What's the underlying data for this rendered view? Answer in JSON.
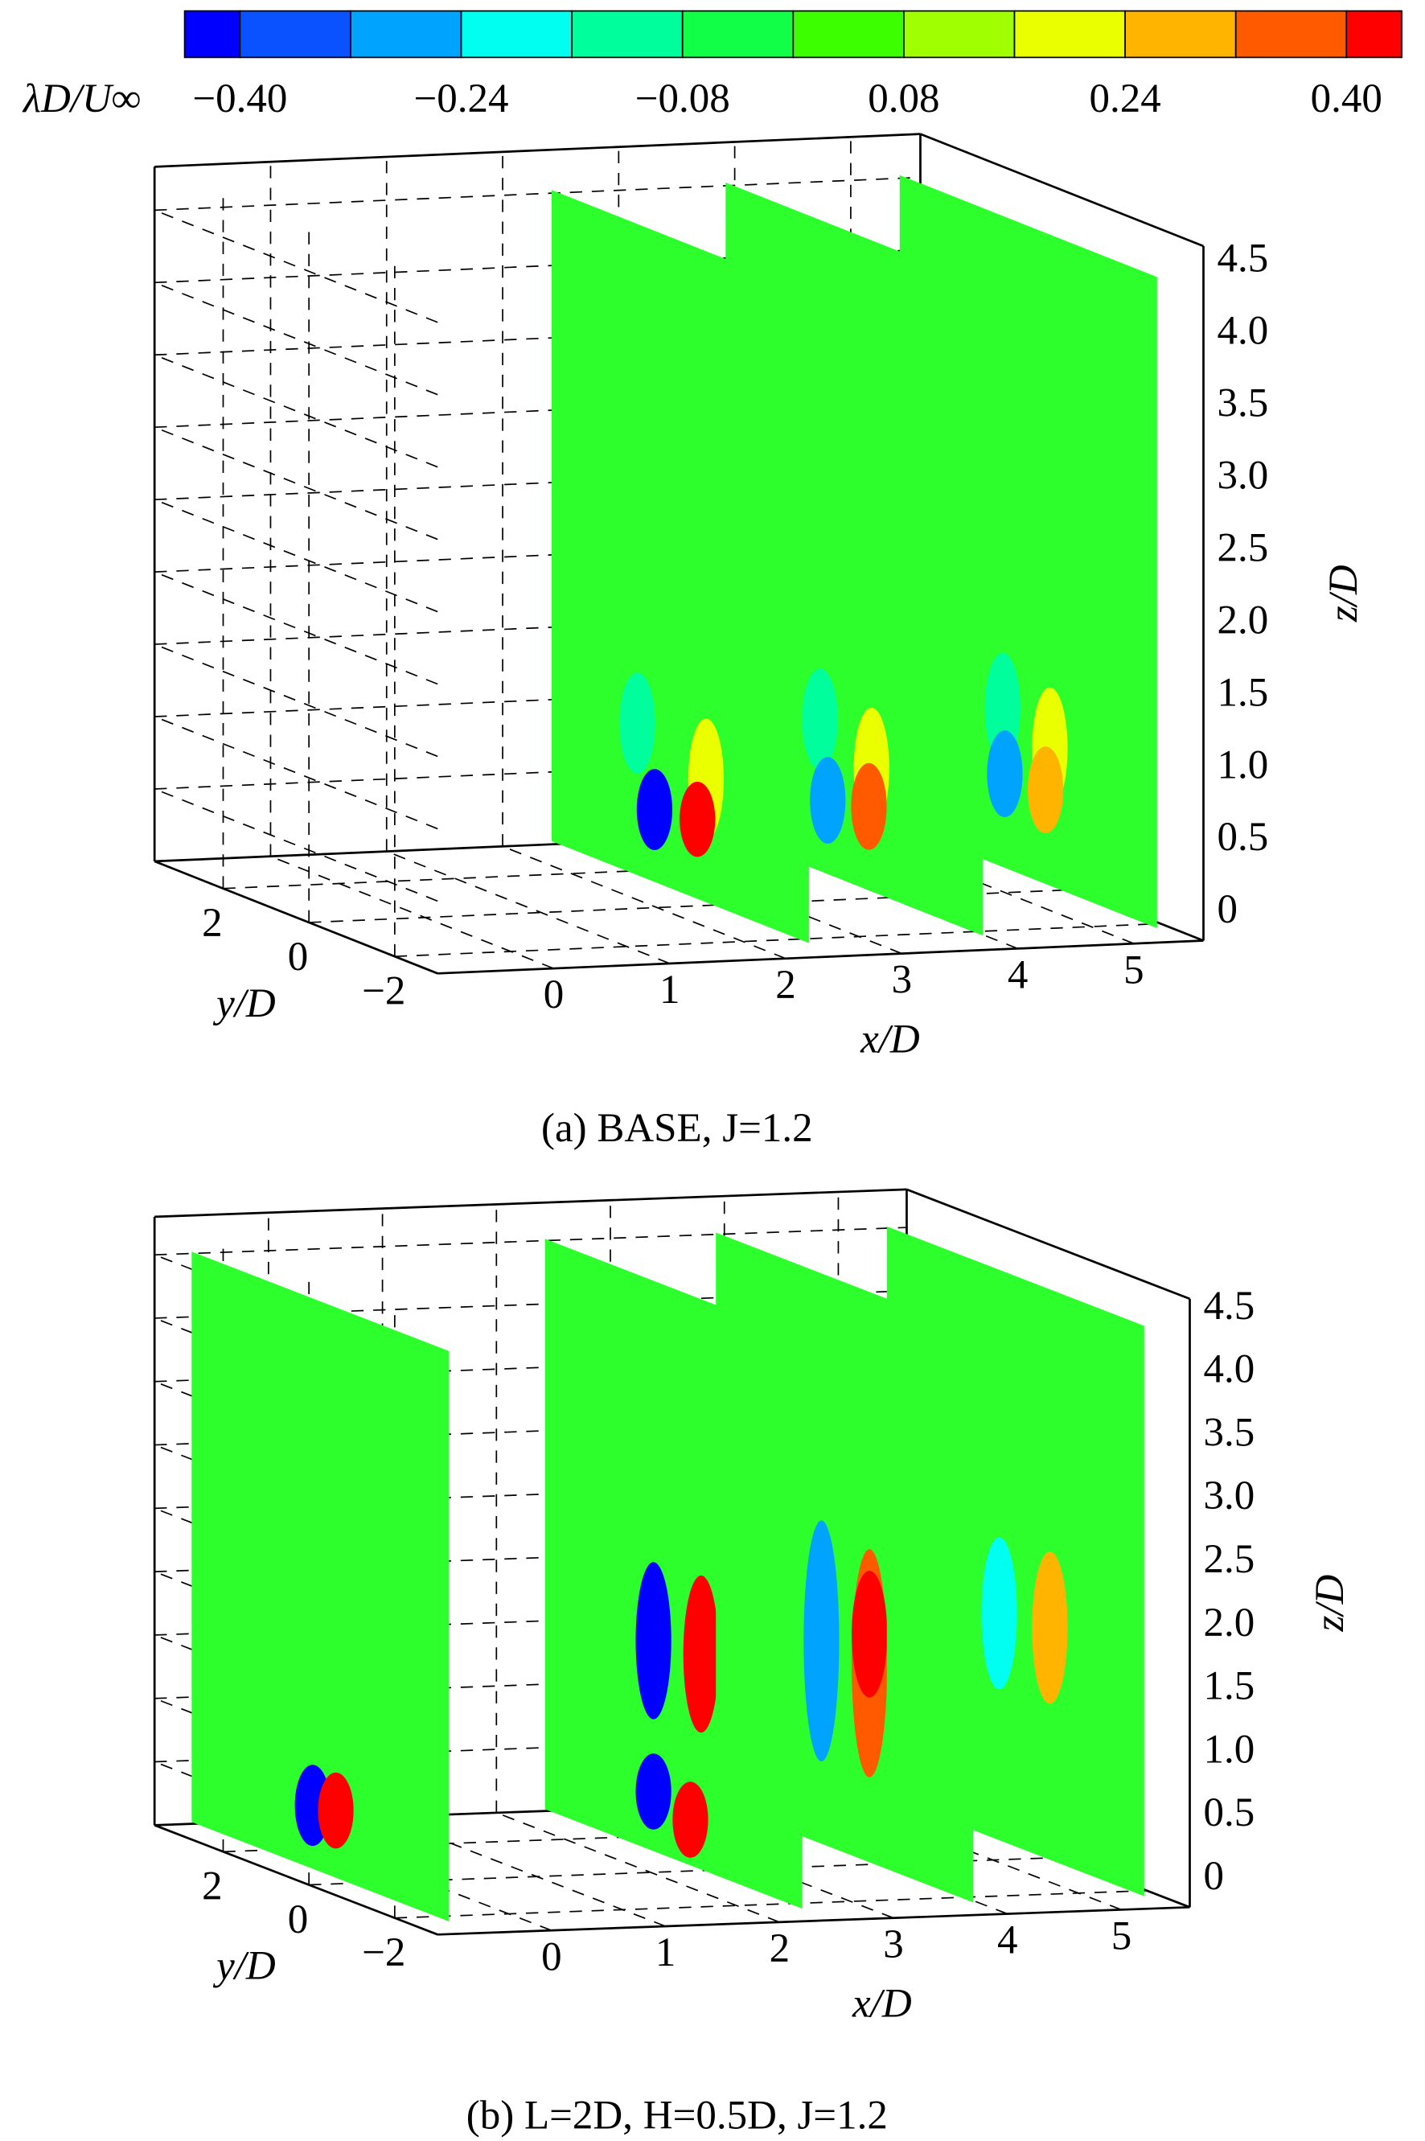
{
  "colorbar": {
    "label": "λD/U∞",
    "levels": [
      -0.44,
      -0.4,
      -0.32,
      -0.24,
      -0.16,
      -0.08,
      0,
      0.08,
      0.16,
      0.24,
      0.32,
      0.4,
      0.44
    ],
    "colors": [
      "#0000ff",
      "#0a52ff",
      "#00a4ff",
      "#00fff0",
      "#00ff9c",
      "#12ff48",
      "#3cff00",
      "#a0ff00",
      "#eaff00",
      "#ffb400",
      "#ff5a00",
      "#ff0000"
    ],
    "ticks": [
      {
        "value": -0.4,
        "label": "−0.40"
      },
      {
        "value": -0.24,
        "label": "−0.24"
      },
      {
        "value": -0.08,
        "label": "−0.08"
      },
      0.08,
      0.24,
      {
        "value": 0.4,
        "label": "0.40"
      }
    ]
  },
  "chart_data": [
    {
      "type": "slices3d",
      "caption": "(a) BASE, J=1.2",
      "xlabel": "x/D",
      "ylabel": "y/D",
      "zlabel": "z/D",
      "xlim": [
        -1,
        5.6
      ],
      "ylim": [
        -3,
        3.6
      ],
      "zlim": [
        0,
        4.8
      ],
      "xticks": [
        0,
        1,
        2,
        3,
        4,
        5
      ],
      "yticks": [
        {
          "value": -2,
          "label": "−2"
        },
        0,
        2
      ],
      "zticks": [
        0,
        0.5,
        {
          "value": 1,
          "label": "1.0"
        },
        1.5,
        {
          "value": 2,
          "label": "2.0"
        },
        2.5,
        {
          "value": 3,
          "label": "3.0"
        },
        3.5,
        {
          "value": 4,
          "label": "4.0"
        },
        4.5
      ],
      "grid": true,
      "slice_ylim": [
        -3,
        3
      ],
      "slice_zlim": [
        0.1,
        4.6
      ],
      "slices": [
        {
          "x": 2.2,
          "vortices": [
            {
              "y": 1.0,
              "z": 1.15,
              "value": -0.16,
              "rz": 0.35
            },
            {
              "y": -0.6,
              "z": 0.95,
              "value": 0.2,
              "rz": 0.42
            },
            {
              "y": 0.6,
              "z": 0.6,
              "value": -0.42,
              "rz": 0.28
            },
            {
              "y": -0.4,
              "z": 0.65,
              "value": 0.42,
              "rz": 0.26
            }
          ]
        },
        {
          "x": 3.7,
          "vortices": [
            {
              "y": 0.8,
              "z": 1.15,
              "value": -0.16,
              "rz": 0.35
            },
            {
              "y": -0.4,
              "z": 0.95,
              "value": 0.2,
              "rz": 0.42
            },
            {
              "y": 0.62,
              "z": 0.61,
              "value": -0.3,
              "rz": 0.3
            },
            {
              "y": -0.34,
              "z": 0.68,
              "value": 0.34,
              "rz": 0.3
            }
          ]
        },
        {
          "x": 5.2,
          "vortices": [
            {
              "y": 0.6,
              "z": 1.2,
              "value": -0.16,
              "rz": 0.38
            },
            {
              "y": -0.5,
              "z": 1.05,
              "value": 0.2,
              "rz": 0.42
            },
            {
              "y": 0.55,
              "z": 0.75,
              "value": -0.26,
              "rz": 0.3
            },
            {
              "y": -0.4,
              "z": 0.75,
              "value": 0.26,
              "rz": 0.3
            }
          ]
        }
      ]
    },
    {
      "type": "slices3d",
      "caption": "(b) L=2D, H=0.5D, J=1.2",
      "xlabel": "x/D",
      "ylabel": "y/D",
      "zlabel": "z/D",
      "xlim": [
        -1,
        5.6
      ],
      "ylim": [
        -3,
        3.6
      ],
      "zlim": [
        0,
        4.8
      ],
      "xticks": [
        0,
        1,
        2,
        3,
        4,
        5
      ],
      "yticks": [
        {
          "value": -2,
          "label": "−2"
        },
        0,
        2
      ],
      "zticks": [
        0,
        0.5,
        {
          "value": 1,
          "label": "1.0"
        },
        1.5,
        {
          "value": 2,
          "label": "2.0"
        },
        2.5,
        {
          "value": 3,
          "label": "3.0"
        },
        3.5,
        {
          "value": 4,
          "label": "4.0"
        },
        4.5
      ],
      "grid": true,
      "slice_ylim": [
        -3,
        3
      ],
      "slice_zlim": [
        0.1,
        4.6
      ],
      "slices": [
        {
          "x": -0.9,
          "vortices": [
            {
              "y": 0.18,
              "z": 0.6,
              "value": -0.42,
              "rz": 0.32
            },
            {
              "y": -0.36,
              "z": 0.63,
              "value": 0.42,
              "rz": 0.3
            }
          ]
        },
        {
          "x": 2.2,
          "vortices": [
            {
              "y": 0.47,
              "z": 1.76,
              "value": -0.42,
              "rz": 0.62
            },
            {
              "y": -0.64,
              "z": 1.8,
              "value": 0.42,
              "rz": 0.62
            },
            {
              "y": 0.47,
              "z": 0.57,
              "value": -0.42,
              "rz": 0.3
            },
            {
              "y": -0.39,
              "z": 0.46,
              "value": 0.42,
              "rz": 0.3
            }
          ]
        },
        {
          "x": 3.7,
          "vortices": [
            {
              "y": 0.54,
              "z": 1.7,
              "value": -0.3,
              "rz": 0.95
            },
            {
              "y": -0.58,
              "z": 1.67,
              "value": 0.34,
              "rz": 0.9
            },
            {
              "y": -0.58,
              "z": 1.9,
              "value": 0.42,
              "rz": 0.5
            }
          ]
        },
        {
          "x": 5.2,
          "vortices": [
            {
              "y": 0.38,
              "z": 1.89,
              "value": -0.24,
              "rz": 0.6
            },
            {
              "y": -0.8,
              "z": 1.93,
              "value": 0.28,
              "rz": 0.6
            }
          ]
        }
      ]
    }
  ]
}
